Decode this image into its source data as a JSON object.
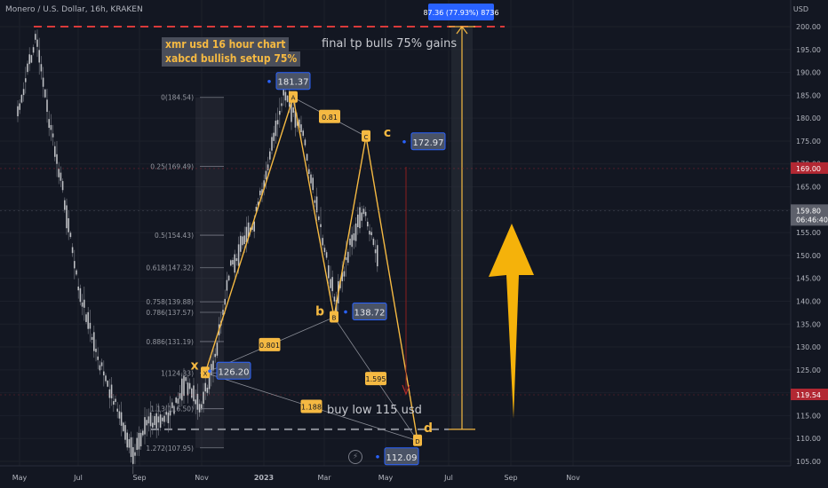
{
  "header": {
    "title": "Monero / U.S. Dollar, 16h, KRAKEN",
    "currency": "USD"
  },
  "notes": {
    "chart_title_line1": "xmr usd 16 hour chart",
    "chart_title_line2": "xabcd bullish setup 75%",
    "final_tp": "final tp bulls 75% gains",
    "buy_low": "buy low 115 usd",
    "measure_label": "87.36 (77.93%) 8736"
  },
  "colors": {
    "pattern": "#f5b942",
    "bg": "#131722",
    "price_line": "#d93a3a"
  },
  "badges": {
    "price_169": "169.00",
    "price_current": "159.80",
    "countdown": "06:46:40",
    "price_119": "119.54"
  },
  "chart_data": {
    "type": "line",
    "title": "Monero / U.S. Dollar, 16h, KRAKEN",
    "ylabel": "USD",
    "ylim": [
      105,
      202
    ],
    "x_ticks": [
      "May",
      "Jul",
      "Sep",
      "Nov",
      "2023",
      "Mar",
      "May",
      "Jul",
      "Sep",
      "Nov"
    ],
    "y_ticks": [
      105,
      110,
      115,
      120,
      125,
      130,
      135,
      140,
      145,
      150,
      155,
      160,
      165,
      170,
      175,
      180,
      185,
      190,
      195,
      200
    ],
    "y_tick_labels": [
      "105.00",
      "110.00",
      "115.00",
      "120.00",
      "125.00",
      "130.00",
      "135.00",
      "140.00",
      "145.00",
      "150.00",
      "155.00",
      "160.00",
      "165.00",
      "170.00",
      "175.00",
      "180.00",
      "185.00",
      "190.00",
      "195.00",
      "200.00"
    ],
    "xabcd": [
      {
        "name": "x",
        "price": 124.33,
        "label": "126.20"
      },
      {
        "name": "a",
        "price": 184.54,
        "label": "181.37"
      },
      {
        "name": "b",
        "price": 136.5,
        "label": "138.72"
      },
      {
        "name": "c",
        "price": 176,
        "label": "172.97"
      },
      {
        "name": "d",
        "price": 109.5,
        "label": "112.09"
      }
    ],
    "ratios": [
      "0.801",
      "0.81",
      "1.595",
      "1.188"
    ],
    "fib_levels": [
      {
        "label": "0(184.54)",
        "price": 184.54
      },
      {
        "label": "0.25(169.49)",
        "price": 169.49
      },
      {
        "label": "0.5(154.43)",
        "price": 154.43
      },
      {
        "label": "0.618(147.32)",
        "price": 147.32
      },
      {
        "label": "0.758(139.88)",
        "price": 139.88
      },
      {
        "label": "0.786(137.57)",
        "price": 137.57
      },
      {
        "label": "0.886(131.19)",
        "price": 131.19
      },
      {
        "label": "1(124.33)",
        "price": 124.33
      },
      {
        "label": "1.13(116.50)",
        "price": 116.5
      },
      {
        "label": "1.272(107.95)",
        "price": 107.95
      }
    ],
    "horizontal_lines": [
      {
        "name": "target",
        "price": 200
      },
      {
        "name": "buy-low",
        "price": 112
      }
    ],
    "measure": {
      "from": 112,
      "to": 200
    }
  }
}
